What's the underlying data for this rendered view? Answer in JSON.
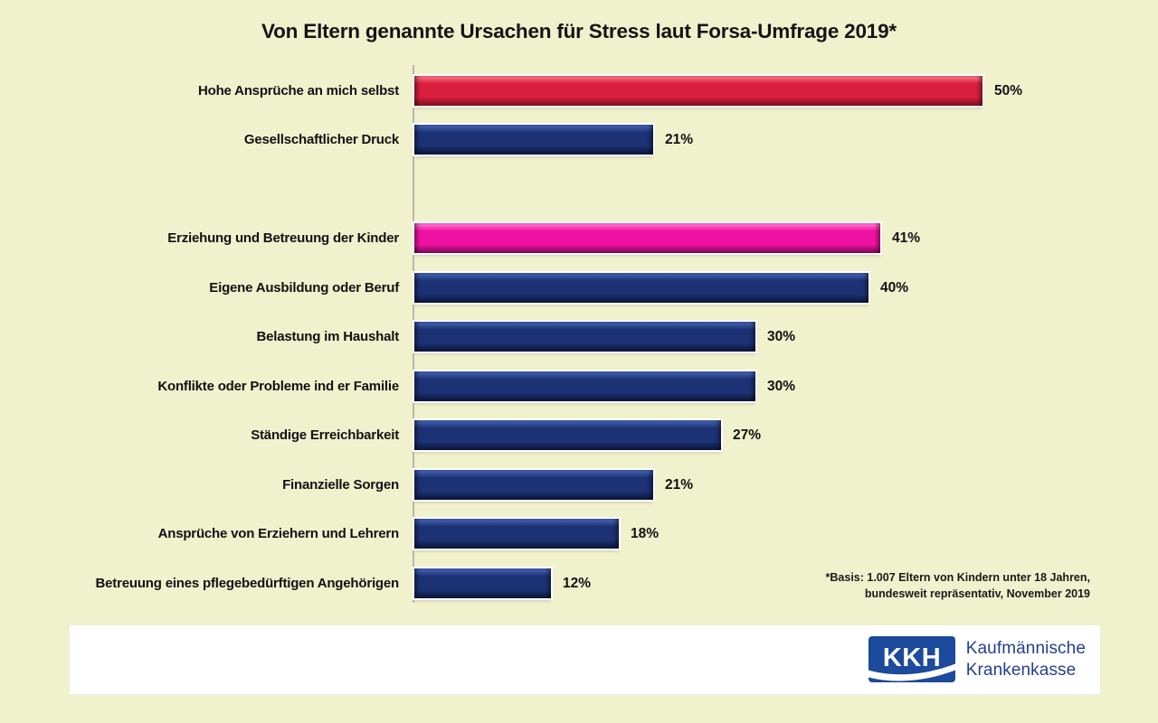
{
  "title": "Von Eltern genannte Ursachen für Stress laut Forsa-Umfrage 2019*",
  "chart_data": {
    "type": "bar",
    "orientation": "horizontal",
    "title": "Von Eltern genannte Ursachen für Stress laut Forsa-Umfrage 2019*",
    "value_unit": "%",
    "xlim": [
      0,
      50
    ],
    "grid": false,
    "legend": false,
    "gap_after_index": 1,
    "bars": [
      {
        "label": "Hohe Ansprüche an mich selbst",
        "value": 50,
        "display": "50%",
        "color_role": "red"
      },
      {
        "label": "Gesellschaftlicher Druck",
        "value": 21,
        "display": "21%",
        "color_role": "navy"
      },
      {
        "label": "Erziehung und Betreuung der Kinder",
        "value": 41,
        "display": "41%",
        "color_role": "pink"
      },
      {
        "label": "Eigene Ausbildung oder Beruf",
        "value": 40,
        "display": "40%",
        "color_role": "navy"
      },
      {
        "label": "Belastung im Haushalt",
        "value": 30,
        "display": "30%",
        "color_role": "navy"
      },
      {
        "label": "Konflikte oder Probleme ind er Familie",
        "value": 30,
        "display": "30%",
        "color_role": "navy"
      },
      {
        "label": "Ständige Erreichbarkeit",
        "value": 27,
        "display": "27%",
        "color_role": "navy"
      },
      {
        "label": "Finanzielle Sorgen",
        "value": 21,
        "display": "21%",
        "color_role": "navy"
      },
      {
        "label": "Ansprüche von Erziehern und Lehrern",
        "value": 18,
        "display": "18%",
        "color_role": "navy"
      },
      {
        "label": "Betreuung eines pflegebedürftigen Angehörigen",
        "value": 12,
        "display": "12%",
        "color_role": "navy"
      }
    ],
    "colors": {
      "red": "#d91e3e",
      "navy": "#1d3274",
      "pink": "#ef11a2",
      "background": "#f0f1cd",
      "axis_line": "#b9b9ad"
    }
  },
  "footnote": {
    "line1": "*Basis: 1.007 Eltern von Kindern unter 18 Jahren,",
    "line2": "bundesweit repräsentativ, November 2019"
  },
  "footer": {
    "logo_text": "KKH",
    "brand_line1": "Kaufmännische",
    "brand_line2": "Krankenkasse",
    "logo_color": "#1c4a9c"
  }
}
